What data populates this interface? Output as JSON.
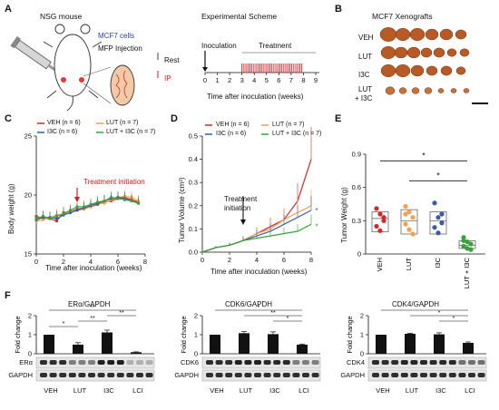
{
  "panels": {
    "A": "A",
    "B": "B",
    "C": "C",
    "D": "D",
    "E": "E",
    "F": "F"
  },
  "panelA": {
    "mouse": "NSG mouse",
    "cells": "MCF7 cells",
    "injection": "MFP Injection",
    "scheme_title": "Experimental Scheme",
    "inoculation": "Inoculation",
    "treatment": "Treatment",
    "rest": "Rest",
    "ip": "IP",
    "xlabel": "Time after inoculation (weeks)",
    "ticks": [
      "0",
      "1",
      "2",
      "3",
      "4",
      "5",
      "6",
      "7",
      "8",
      "9"
    ]
  },
  "panelB": {
    "title": "MCF7 Xenografts",
    "rows": [
      "VEH",
      "LUT",
      "I3C",
      "LUT\n+ I3C"
    ],
    "row_labels": [
      "VEH",
      "LUT",
      "I3C",
      "LUT",
      "+ I3C"
    ],
    "counts": [
      6,
      7,
      6,
      7
    ]
  },
  "colors": {
    "veh": "#d62728",
    "lut": "#f5a04a",
    "i3c": "#3b5ba9",
    "lci": "#3aa13a",
    "red": "#e8141b"
  },
  "legend": {
    "veh": "VEH (n = 6)",
    "lut": "LUT (n = 7)",
    "i3c": "I3C (n = 6)",
    "lci": "LUT + I3C (n = 7)"
  },
  "chart_data": [
    {
      "id": "C",
      "type": "line",
      "ylabel": "Body weight (g)",
      "xlabel": "Time after inoculation (weeks)",
      "ylim": [
        15,
        25
      ],
      "xlim": [
        0,
        8
      ],
      "yticks": [
        "15",
        "20",
        "25"
      ],
      "xticks": [
        "0",
        "2",
        "4",
        "6",
        "8"
      ],
      "annotation": "Treatment initiation",
      "x": [
        0,
        0.5,
        1,
        1.5,
        2,
        2.5,
        3,
        3.5,
        4,
        4.5,
        5,
        5.5,
        6,
        6.5,
        7,
        7.5
      ],
      "series": [
        {
          "name": "VEH (n = 6)",
          "values": [
            18.2,
            18.0,
            18.0,
            17.8,
            18.5,
            18.6,
            18.8,
            18.9,
            19.0,
            19.2,
            19.4,
            19.5,
            19.7,
            19.8,
            19.6,
            19.4
          ]
        },
        {
          "name": "LUT (n = 7)",
          "values": [
            17.8,
            17.9,
            18.1,
            18.3,
            18.4,
            18.6,
            18.7,
            18.8,
            19.0,
            19.3,
            19.3,
            19.6,
            19.8,
            19.9,
            19.8,
            19.5
          ]
        },
        {
          "name": "I3C (n = 6)",
          "values": [
            17.9,
            18.1,
            18.1,
            18.0,
            18.3,
            18.5,
            18.7,
            18.9,
            19.1,
            19.3,
            19.5,
            19.7,
            19.8,
            19.7,
            19.5,
            19.3
          ]
        },
        {
          "name": "LUT + I3C (n = 7)",
          "values": [
            18.0,
            18.2,
            18.0,
            18.2,
            18.4,
            18.7,
            19.0,
            19.0,
            19.2,
            19.4,
            19.5,
            19.8,
            19.7,
            19.6,
            19.5,
            19.3
          ]
        }
      ]
    },
    {
      "id": "D",
      "type": "line",
      "ylabel": "Tumor Volume (cm³)",
      "xlabel": "Time after inoculation (weeks)",
      "ylim": [
        0,
        0.5
      ],
      "xlim": [
        0,
        8
      ],
      "yticks": [
        "0.0",
        "0.1",
        "0.2",
        "0.3",
        "0.4",
        "0.5"
      ],
      "xticks": [
        "0",
        "2",
        "4",
        "6",
        "8"
      ],
      "annotation": "Treatment\ninitiation",
      "x": [
        0,
        1,
        2,
        3,
        4,
        5,
        6,
        7,
        8
      ],
      "series": [
        {
          "name": "VEH (n = 6)",
          "values": [
            0.0,
            0.02,
            0.03,
            0.05,
            0.08,
            0.11,
            0.14,
            0.22,
            0.4
          ]
        },
        {
          "name": "LUT (n = 7)",
          "values": [
            0.0,
            0.02,
            0.03,
            0.05,
            0.08,
            0.1,
            0.14,
            0.17,
            0.2
          ]
        },
        {
          "name": "I3C (n = 6)",
          "values": [
            0.0,
            0.02,
            0.03,
            0.05,
            0.07,
            0.09,
            0.12,
            0.15,
            0.18
          ]
        },
        {
          "name": "LUT + I3C (n = 7)",
          "values": [
            0.0,
            0.02,
            0.03,
            0.05,
            0.06,
            0.07,
            0.08,
            0.09,
            0.12
          ]
        }
      ],
      "stars": [
        "*",
        "*"
      ]
    },
    {
      "id": "E",
      "type": "scatter",
      "ylabel": "Tumor Weight (g)",
      "ylim": [
        0,
        0.9
      ],
      "yticks": [
        "0",
        "0.3",
        "0.6",
        "0.9"
      ],
      "categories": [
        "VEH",
        "LUT",
        "I3C",
        "LUT\n+ I3C"
      ],
      "category_labels": [
        "VEH",
        "LUT",
        "I3C",
        "LUT + I3C"
      ],
      "points": [
        [
          0.41,
          0.36,
          0.3,
          0.25,
          0.21,
          0.33
        ],
        [
          0.43,
          0.38,
          0.33,
          0.27,
          0.22,
          0.18,
          0.36
        ],
        [
          0.46,
          0.33,
          0.28,
          0.24,
          0.19,
          0.36
        ],
        [
          0.15,
          0.11,
          0.09,
          0.07,
          0.05,
          0.04,
          0.12
        ]
      ],
      "box": [
        [
          0.2,
          0.38,
          0.32
        ],
        [
          0.18,
          0.4,
          0.3
        ],
        [
          0.18,
          0.38,
          0.3
        ],
        [
          0.05,
          0.12,
          0.08
        ]
      ],
      "stars": [
        "*",
        "*"
      ]
    },
    {
      "id": "F1",
      "type": "bar",
      "title": "ERα/GAPDH",
      "ylabel": "Fold change",
      "ylim": [
        0,
        2
      ],
      "yticks": [
        "0",
        "1",
        "2"
      ],
      "categories": [
        "VEH",
        "LUT",
        "I3C",
        "LCI"
      ],
      "values": [
        1.0,
        0.48,
        1.12,
        0.08
      ],
      "errors": [
        0,
        0.1,
        0.12,
        0.02
      ],
      "stars": [
        "*",
        "**",
        "**",
        "**"
      ],
      "blots": [
        "ERα",
        "GAPDH"
      ]
    },
    {
      "id": "F2",
      "type": "bar",
      "title": "CDK6/GAPDH",
      "ylabel": "Fold change",
      "ylim": [
        0,
        2
      ],
      "yticks": [
        "0",
        "1",
        "2"
      ],
      "categories": [
        "VEH",
        "LUT",
        "I3C",
        "LCI"
      ],
      "values": [
        1.0,
        1.08,
        1.03,
        0.48
      ],
      "errors": [
        0,
        0.08,
        0.12,
        0.03
      ],
      "stars": [
        "*",
        "**",
        "*"
      ],
      "blots": [
        "CDK6",
        "GAPDH"
      ]
    },
    {
      "id": "F3",
      "type": "bar",
      "title": "CDK4/GAPDH",
      "ylabel": "Fold change",
      "ylim": [
        0,
        2
      ],
      "yticks": [
        "0",
        "1",
        "2"
      ],
      "categories": [
        "VEH",
        "LUT",
        "I3C",
        "LCI"
      ],
      "values": [
        1.0,
        1.05,
        1.02,
        0.57
      ],
      "errors": [
        0,
        0.03,
        0.08,
        0.05
      ],
      "stars": [
        "*",
        "*",
        "*"
      ],
      "blots": [
        "CDK4",
        "GAPDH"
      ]
    }
  ]
}
